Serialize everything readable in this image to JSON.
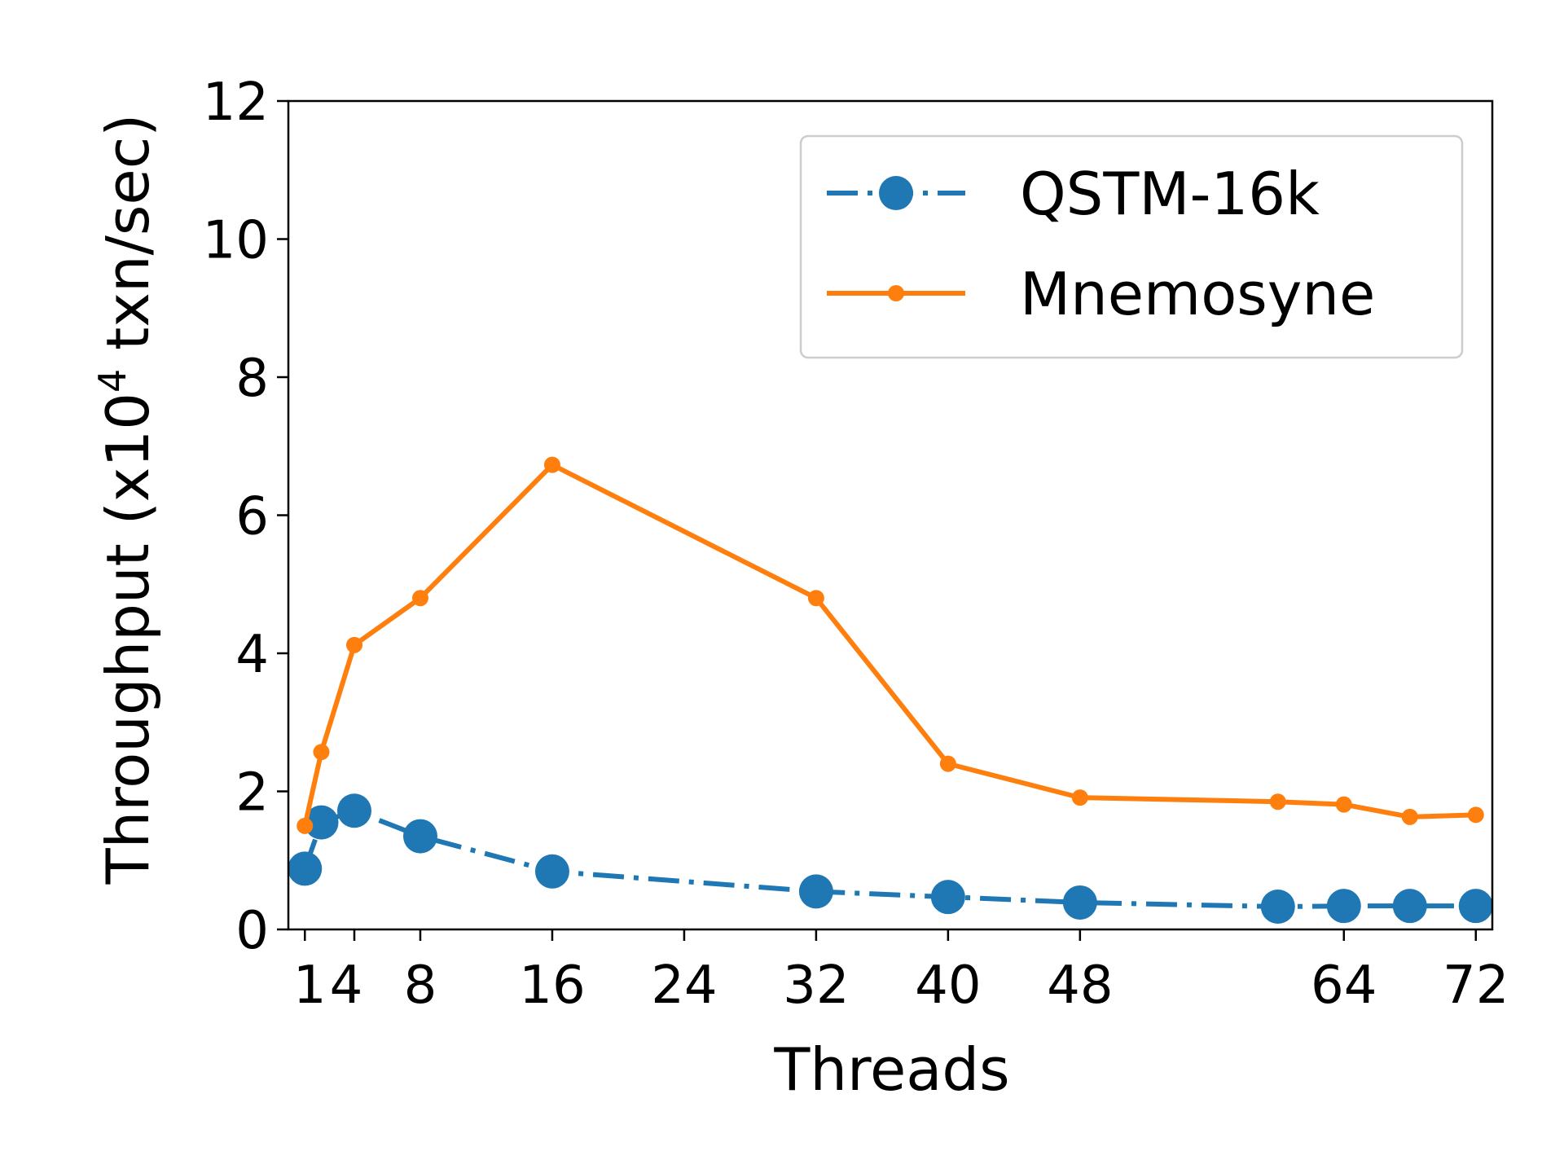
{
  "chart_data": {
    "type": "line",
    "xlabel": "Threads",
    "ylabel": "Throughput (x10",
    "ylabel_sup": "4",
    "ylabel_tail": " txn/sec)",
    "xlim": [
      0,
      73
    ],
    "ylim": [
      0,
      12
    ],
    "xticks": [
      1,
      4,
      8,
      16,
      24,
      32,
      40,
      48,
      64,
      72
    ],
    "xtick_labels": [
      "1",
      "4",
      "8",
      "16",
      "24",
      "32",
      "40",
      "48",
      "64",
      "72"
    ],
    "yticks": [
      0,
      2,
      4,
      6,
      8,
      10,
      12
    ],
    "ytick_labels": [
      "0",
      "2",
      "4",
      "6",
      "8",
      "10",
      "12"
    ],
    "legend_position": "top-right",
    "grid": false,
    "series": [
      {
        "name": "QSTM-16k",
        "color": "#1f77b4",
        "style": "dash-dot",
        "marker": "large-circle",
        "x": [
          1,
          2,
          4,
          8,
          16,
          32,
          40,
          48,
          60,
          64,
          68,
          72
        ],
        "y": [
          0.88,
          1.55,
          1.72,
          1.35,
          0.84,
          0.55,
          0.47,
          0.39,
          0.33,
          0.34,
          0.34,
          0.34
        ]
      },
      {
        "name": "Mnemosyne",
        "color": "#ff7f0e",
        "style": "solid",
        "marker": "small-circle",
        "x": [
          1,
          2,
          4,
          8,
          16,
          32,
          40,
          48,
          60,
          64,
          68,
          72
        ],
        "y": [
          1.5,
          2.57,
          4.12,
          4.8,
          6.73,
          4.8,
          2.4,
          1.91,
          1.85,
          1.81,
          1.63,
          1.66
        ]
      }
    ]
  }
}
